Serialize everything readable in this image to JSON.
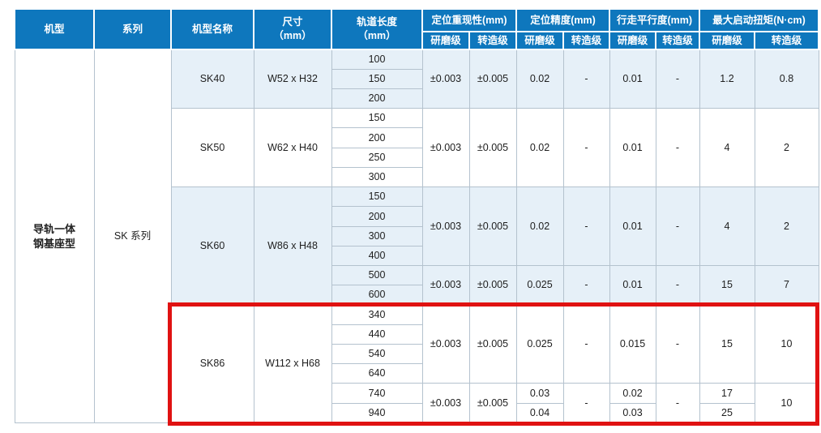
{
  "colors": {
    "header_bg": "#0e77bd",
    "header_text": "#ffffff",
    "shaded_row_bg": "#e6f0f8",
    "plain_row_bg": "#ffffff",
    "cell_border": "#b4c2ce",
    "body_text": "#1e1e1e",
    "highlight_border": "#e01212"
  },
  "header": {
    "columns": [
      "机型",
      "系列",
      "机型名称",
      "尺寸\n（mm）",
      "轨道长度\n（mm）"
    ],
    "groups": [
      {
        "label": "定位重现性(mm)",
        "sub": [
          "研磨级",
          "转造级"
        ]
      },
      {
        "label": "定位精度(mm)",
        "sub": [
          "研磨级",
          "转造级"
        ]
      },
      {
        "label": "行走平行度(mm)",
        "sub": [
          "研磨级",
          "转造级"
        ]
      },
      {
        "label": "最大启动扭矩(N·cm)",
        "sub": [
          "研磨级",
          "转造级"
        ]
      }
    ]
  },
  "body": {
    "model_type": "导轨一体\n钢基座型",
    "series": "SK 系列",
    "groups": [
      {
        "model": "SK40",
        "size": "W52 x H32",
        "shaded": true,
        "highlighted": false,
        "blocks": [
          {
            "lengths": [
              "100",
              "150",
              "200"
            ],
            "values": [
              "±0.003",
              "±0.005",
              "0.02",
              "-",
              "0.01",
              "-",
              "1.2",
              "0.8"
            ]
          }
        ]
      },
      {
        "model": "SK50",
        "size": "W62 x H40",
        "shaded": false,
        "highlighted": false,
        "blocks": [
          {
            "lengths": [
              "150",
              "200",
              "250",
              "300"
            ],
            "values": [
              "±0.003",
              "±0.005",
              "0.02",
              "-",
              "0.01",
              "-",
              "4",
              "2"
            ]
          }
        ]
      },
      {
        "model": "SK60",
        "size": "W86 x H48",
        "shaded": true,
        "highlighted": false,
        "blocks": [
          {
            "lengths": [
              "150",
              "200",
              "300",
              "400"
            ],
            "values": [
              "±0.003",
              "±0.005",
              "0.02",
              "-",
              "0.01",
              "-",
              "4",
              "2"
            ]
          },
          {
            "lengths": [
              "500",
              "600"
            ],
            "values": [
              "±0.003",
              "±0.005",
              "0.025",
              "-",
              "0.01",
              "-",
              "15",
              "7"
            ]
          }
        ]
      },
      {
        "model": "SK86",
        "size": "W112 x H68",
        "shaded": false,
        "highlighted": true,
        "blocks": [
          {
            "lengths": [
              "340",
              "440",
              "540",
              "640"
            ],
            "values": [
              "±0.003",
              "±0.005",
              "0.025",
              "-",
              "0.015",
              "-",
              "15",
              "10"
            ]
          },
          {
            "lengths": [
              "740",
              "940"
            ],
            "values": [
              "±0.003",
              "±0.005",
              [
                "0.03",
                "0.04"
              ],
              "-",
              [
                "0.02",
                "0.03"
              ],
              "-",
              [
                "17",
                "25"
              ],
              "10"
            ]
          }
        ]
      }
    ]
  }
}
